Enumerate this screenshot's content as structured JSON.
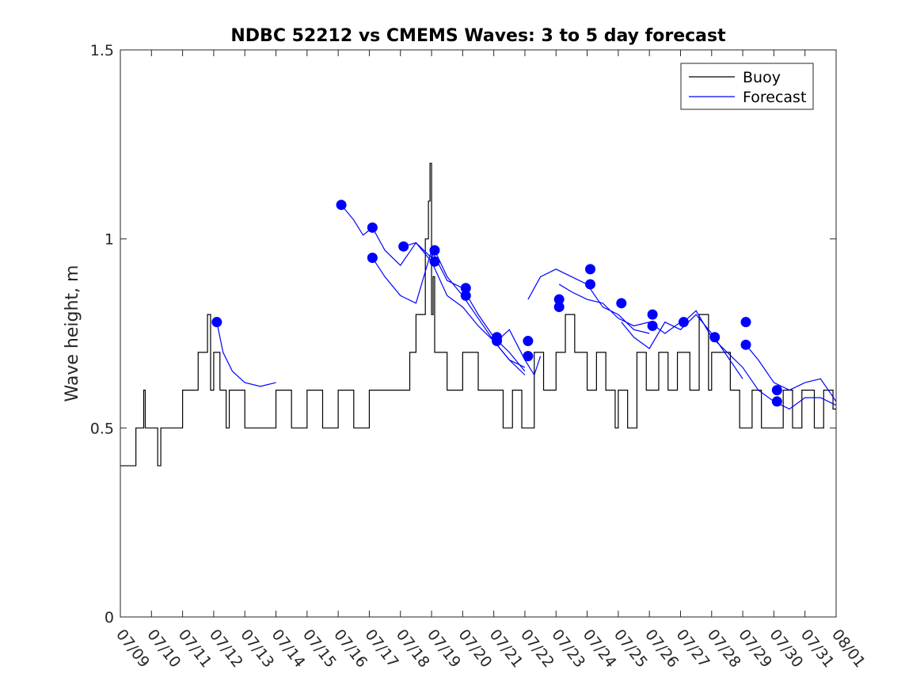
{
  "chart_data": {
    "type": "line",
    "title": "NDBC 52212 vs CMEMS Waves: 3 to 5 day forecast",
    "xlabel": "",
    "ylabel": "Wave height, m",
    "x_type": "date",
    "x_range": [
      "07/09",
      "08/01"
    ],
    "ylim": [
      0,
      1.5
    ],
    "y_ticks": [
      0,
      0.5,
      1,
      1.5
    ],
    "y_tick_labels": [
      "0",
      "0.5",
      "1",
      "1.5"
    ],
    "x_tick_labels": [
      "07/09",
      "07/10",
      "07/11",
      "07/12",
      "07/13",
      "07/14",
      "07/15",
      "07/16",
      "07/17",
      "07/18",
      "07/19",
      "07/20",
      "07/21",
      "07/22",
      "07/23",
      "07/24",
      "07/25",
      "07/26",
      "07/27",
      "07/28",
      "07/29",
      "07/30",
      "07/31",
      "08/01"
    ],
    "grid": false,
    "legend_position": "top-right",
    "legend": [
      "Buoy",
      "Forecast"
    ],
    "colors": {
      "buoy": "#000000",
      "forecast": "#0000ff"
    },
    "buoy": {
      "name": "Buoy",
      "x_day": [
        0.0,
        0.5,
        0.7,
        0.75,
        0.8,
        1.0,
        1.2,
        1.3,
        1.5,
        1.7,
        2.0,
        2.3,
        2.5,
        2.8,
        2.9,
        3.0,
        3.2,
        3.4,
        3.5,
        3.7,
        4.0,
        4.5,
        5.0,
        5.5,
        6.0,
        6.5,
        7.0,
        7.5,
        8.0,
        8.5,
        9.0,
        9.3,
        9.5,
        9.8,
        9.9,
        9.95,
        10.0,
        10.05,
        10.1,
        10.3,
        10.5,
        11.0,
        11.5,
        12.0,
        12.3,
        12.6,
        12.9,
        13.0,
        13.3,
        13.6,
        14.0,
        14.3,
        14.6,
        14.9,
        15.0,
        15.3,
        15.6,
        15.9,
        16.0,
        16.3,
        16.6,
        16.9,
        17.0,
        17.3,
        17.6,
        17.9,
        18.0,
        18.3,
        18.6,
        18.9,
        19.0,
        19.3,
        19.6,
        19.9,
        20.0,
        20.3,
        20.6,
        20.9,
        21.0,
        21.3,
        21.6,
        21.9,
        22.0,
        22.3,
        22.6,
        22.9,
        23.0
      ],
      "y": [
        0.4,
        0.5,
        0.5,
        0.6,
        0.5,
        0.5,
        0.4,
        0.5,
        0.5,
        0.5,
        0.6,
        0.6,
        0.7,
        0.8,
        0.6,
        0.7,
        0.6,
        0.5,
        0.6,
        0.6,
        0.5,
        0.5,
        0.6,
        0.5,
        0.6,
        0.5,
        0.6,
        0.5,
        0.6,
        0.6,
        0.6,
        0.7,
        0.8,
        1.0,
        1.1,
        1.2,
        0.8,
        0.9,
        0.7,
        0.7,
        0.6,
        0.7,
        0.6,
        0.6,
        0.5,
        0.6,
        0.5,
        0.5,
        0.7,
        0.6,
        0.7,
        0.8,
        0.7,
        0.7,
        0.6,
        0.7,
        0.6,
        0.5,
        0.6,
        0.5,
        0.7,
        0.6,
        0.6,
        0.7,
        0.6,
        0.7,
        0.7,
        0.6,
        0.8,
        0.6,
        0.7,
        0.7,
        0.6,
        0.5,
        0.5,
        0.6,
        0.5,
        0.5,
        0.5,
        0.6,
        0.5,
        0.6,
        0.6,
        0.5,
        0.6,
        0.55,
        0.55
      ]
    },
    "forecast_series": [
      {
        "x_day": [
          3.1,
          3.3,
          3.6,
          4.0,
          4.5,
          5.0
        ],
        "y": [
          0.78,
          0.7,
          0.65,
          0.62,
          0.61,
          0.62
        ]
      },
      {
        "x_day": [
          7.1,
          7.5,
          7.8,
          8.1,
          8.5,
          9.0,
          9.5,
          10.0,
          10.5,
          11.0,
          11.5,
          12.0,
          12.5,
          13.0
        ],
        "y": [
          1.09,
          1.05,
          1.01,
          1.03,
          0.97,
          0.93,
          0.99,
          0.94,
          0.85,
          0.82,
          0.77,
          0.73,
          0.68,
          0.64
        ]
      },
      {
        "x_day": [
          8.1,
          8.5,
          9.0,
          9.5,
          10.0,
          10.5,
          11.0,
          11.5,
          12.0,
          12.5,
          13.0
        ],
        "y": [
          0.95,
          0.9,
          0.85,
          0.83,
          0.97,
          0.89,
          0.87,
          0.8,
          0.74,
          0.7,
          0.65
        ]
      },
      {
        "x_day": [
          9.1,
          9.5,
          10.0,
          10.1,
          10.5,
          11.0,
          11.5,
          12.0,
          12.5,
          13.0
        ],
        "y": [
          0.98,
          0.99,
          0.95,
          0.97,
          0.9,
          0.85,
          0.79,
          0.73,
          0.68,
          0.66
        ]
      },
      {
        "x_day": [
          12.1,
          12.5,
          13.0,
          13.3,
          13.5
        ],
        "y": [
          0.73,
          0.76,
          0.68,
          0.64,
          0.69
        ]
      },
      {
        "x_day": [
          13.1,
          13.5,
          14.0,
          14.5,
          15.0,
          15.5,
          16.0,
          16.5,
          17.0
        ],
        "y": [
          0.84,
          0.9,
          0.92,
          0.9,
          0.88,
          0.82,
          0.8,
          0.76,
          0.75
        ]
      },
      {
        "x_day": [
          14.1,
          14.5,
          15.0,
          15.5,
          16.0,
          16.5,
          17.0,
          17.5,
          18.0
        ],
        "y": [
          0.88,
          0.86,
          0.84,
          0.83,
          0.79,
          0.77,
          0.78,
          0.75,
          0.78
        ]
      },
      {
        "x_day": [
          16.1,
          16.5,
          17.0,
          17.5,
          18.0,
          18.5,
          19.0,
          19.5,
          20.0
        ],
        "y": [
          0.78,
          0.74,
          0.71,
          0.78,
          0.76,
          0.8,
          0.75,
          0.69,
          0.63
        ]
      },
      {
        "x_day": [
          18.1,
          18.5,
          19.0,
          19.5,
          20.0,
          20.5,
          21.0,
          21.5,
          22.0,
          22.5,
          23.0
        ],
        "y": [
          0.78,
          0.81,
          0.74,
          0.7,
          0.66,
          0.6,
          0.57,
          0.55,
          0.58,
          0.58,
          0.56
        ]
      },
      {
        "x_day": [
          20.1,
          20.5,
          21.0,
          21.5,
          22.0,
          22.5,
          23.0
        ],
        "y": [
          0.72,
          0.68,
          0.62,
          0.6,
          0.62,
          0.63,
          0.57
        ]
      }
    ],
    "forecast_markers": {
      "x_day": [
        3.1,
        7.1,
        8.1,
        8.1,
        9.1,
        10.1,
        10.1,
        11.1,
        11.1,
        12.1,
        12.1,
        13.1,
        13.1,
        14.1,
        14.1,
        15.1,
        15.1,
        16.1,
        17.1,
        17.1,
        18.1,
        19.1,
        20.1,
        20.1,
        21.1,
        21.1
      ],
      "y": [
        0.78,
        1.09,
        1.03,
        0.95,
        0.98,
        0.97,
        0.94,
        0.87,
        0.85,
        0.74,
        0.73,
        0.73,
        0.69,
        0.84,
        0.82,
        0.92,
        0.88,
        0.83,
        0.8,
        0.77,
        0.78,
        0.74,
        0.78,
        0.72,
        0.6,
        0.57
      ]
    }
  }
}
